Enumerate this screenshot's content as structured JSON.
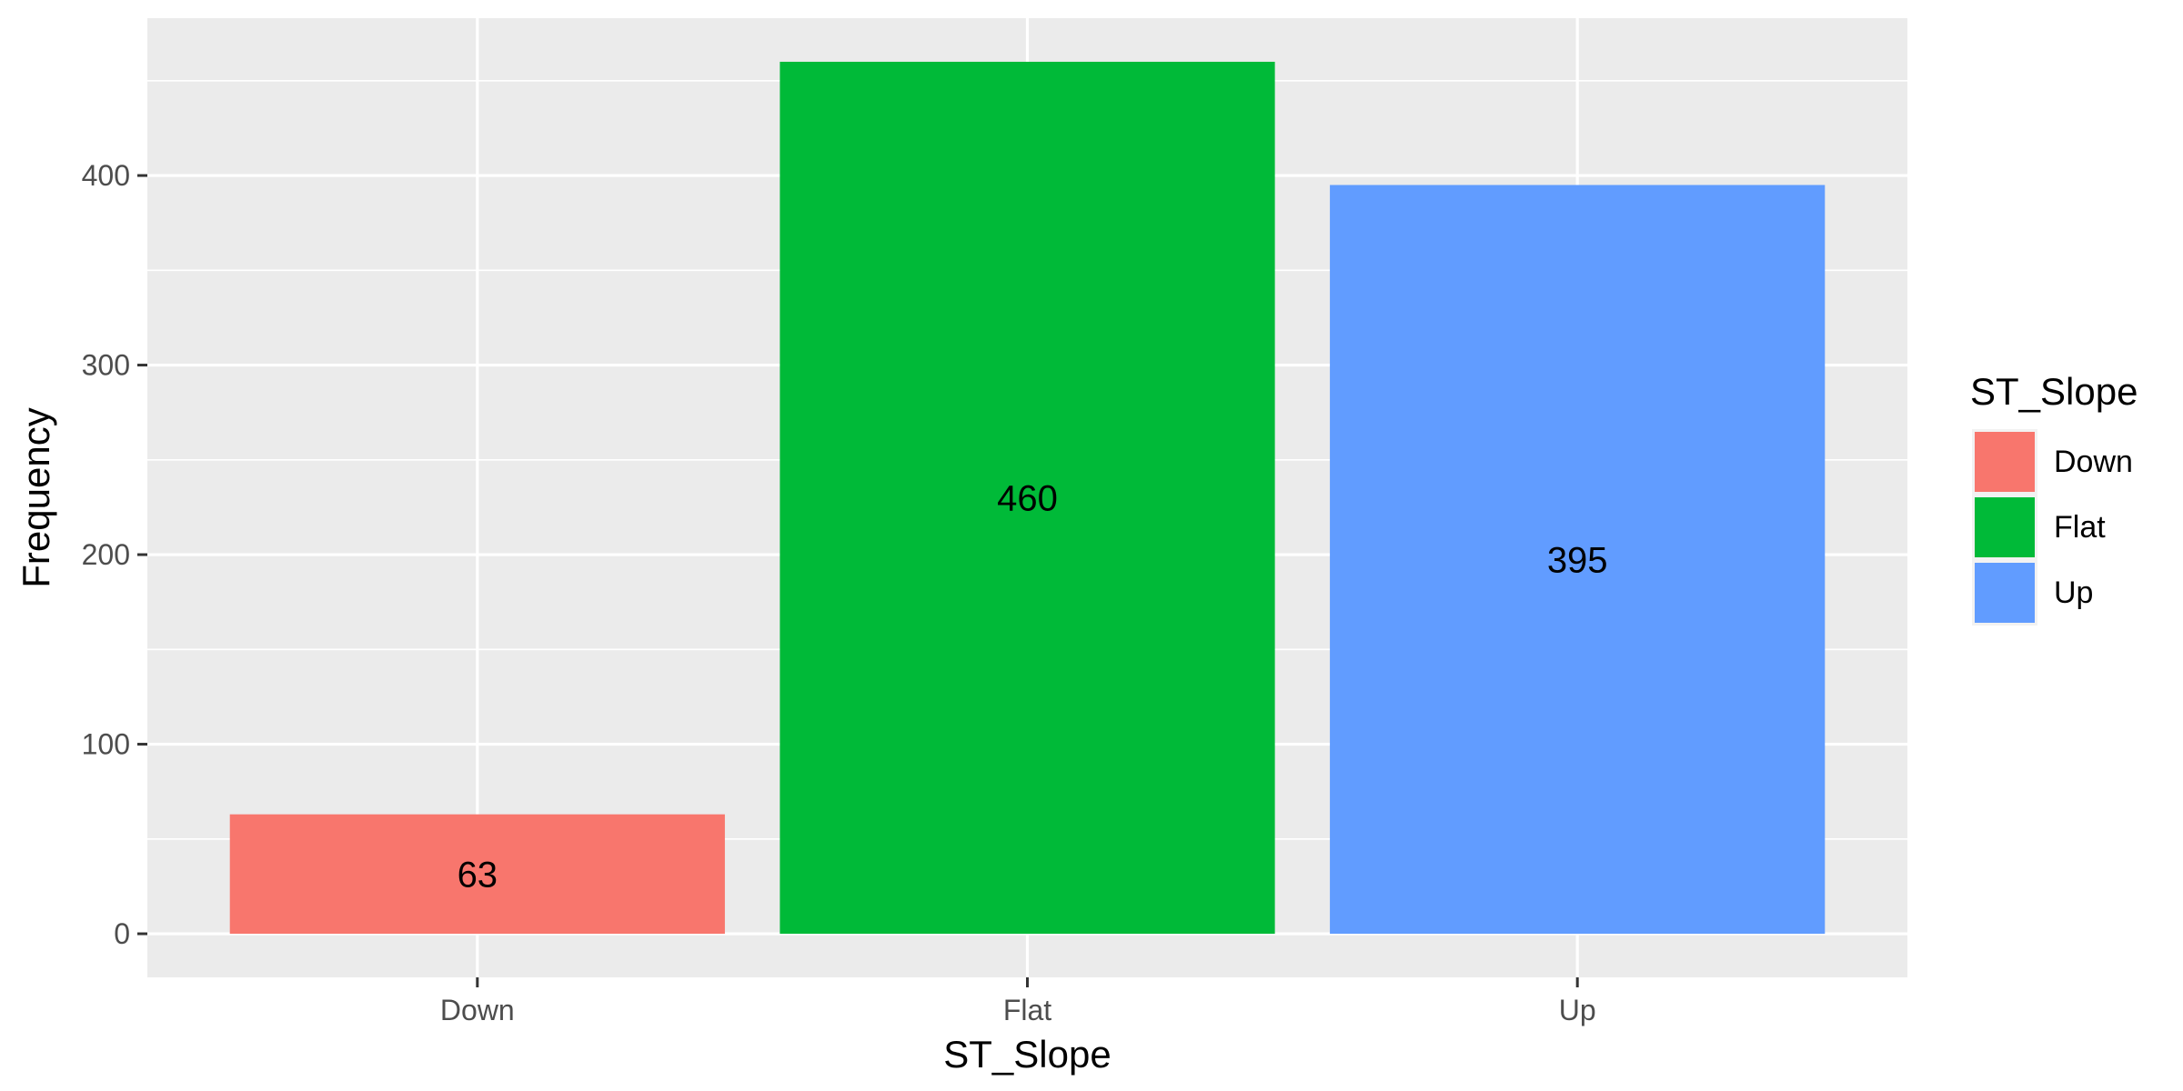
{
  "chart_data": {
    "type": "bar",
    "title": "",
    "xlabel": "ST_Slope",
    "ylabel": "Frequency",
    "categories": [
      "Down",
      "Flat",
      "Up"
    ],
    "values": [
      63,
      460,
      395
    ],
    "data_labels": [
      "63",
      "460",
      "395"
    ],
    "colors": [
      "#F8766D",
      "#00BA38",
      "#619CFF"
    ],
    "ylim": [
      -23.0,
      483.0
    ],
    "yticks": [
      0,
      100,
      200,
      300,
      400
    ],
    "ytick_labels": [
      "0",
      "100",
      "200",
      "300",
      "400"
    ],
    "grid": true,
    "legend": {
      "title": "ST_Slope",
      "position": "right",
      "entries": [
        "Down",
        "Flat",
        "Up"
      ]
    },
    "panel_background": "#EBEBEB",
    "grid_color": "#FFFFFF"
  }
}
